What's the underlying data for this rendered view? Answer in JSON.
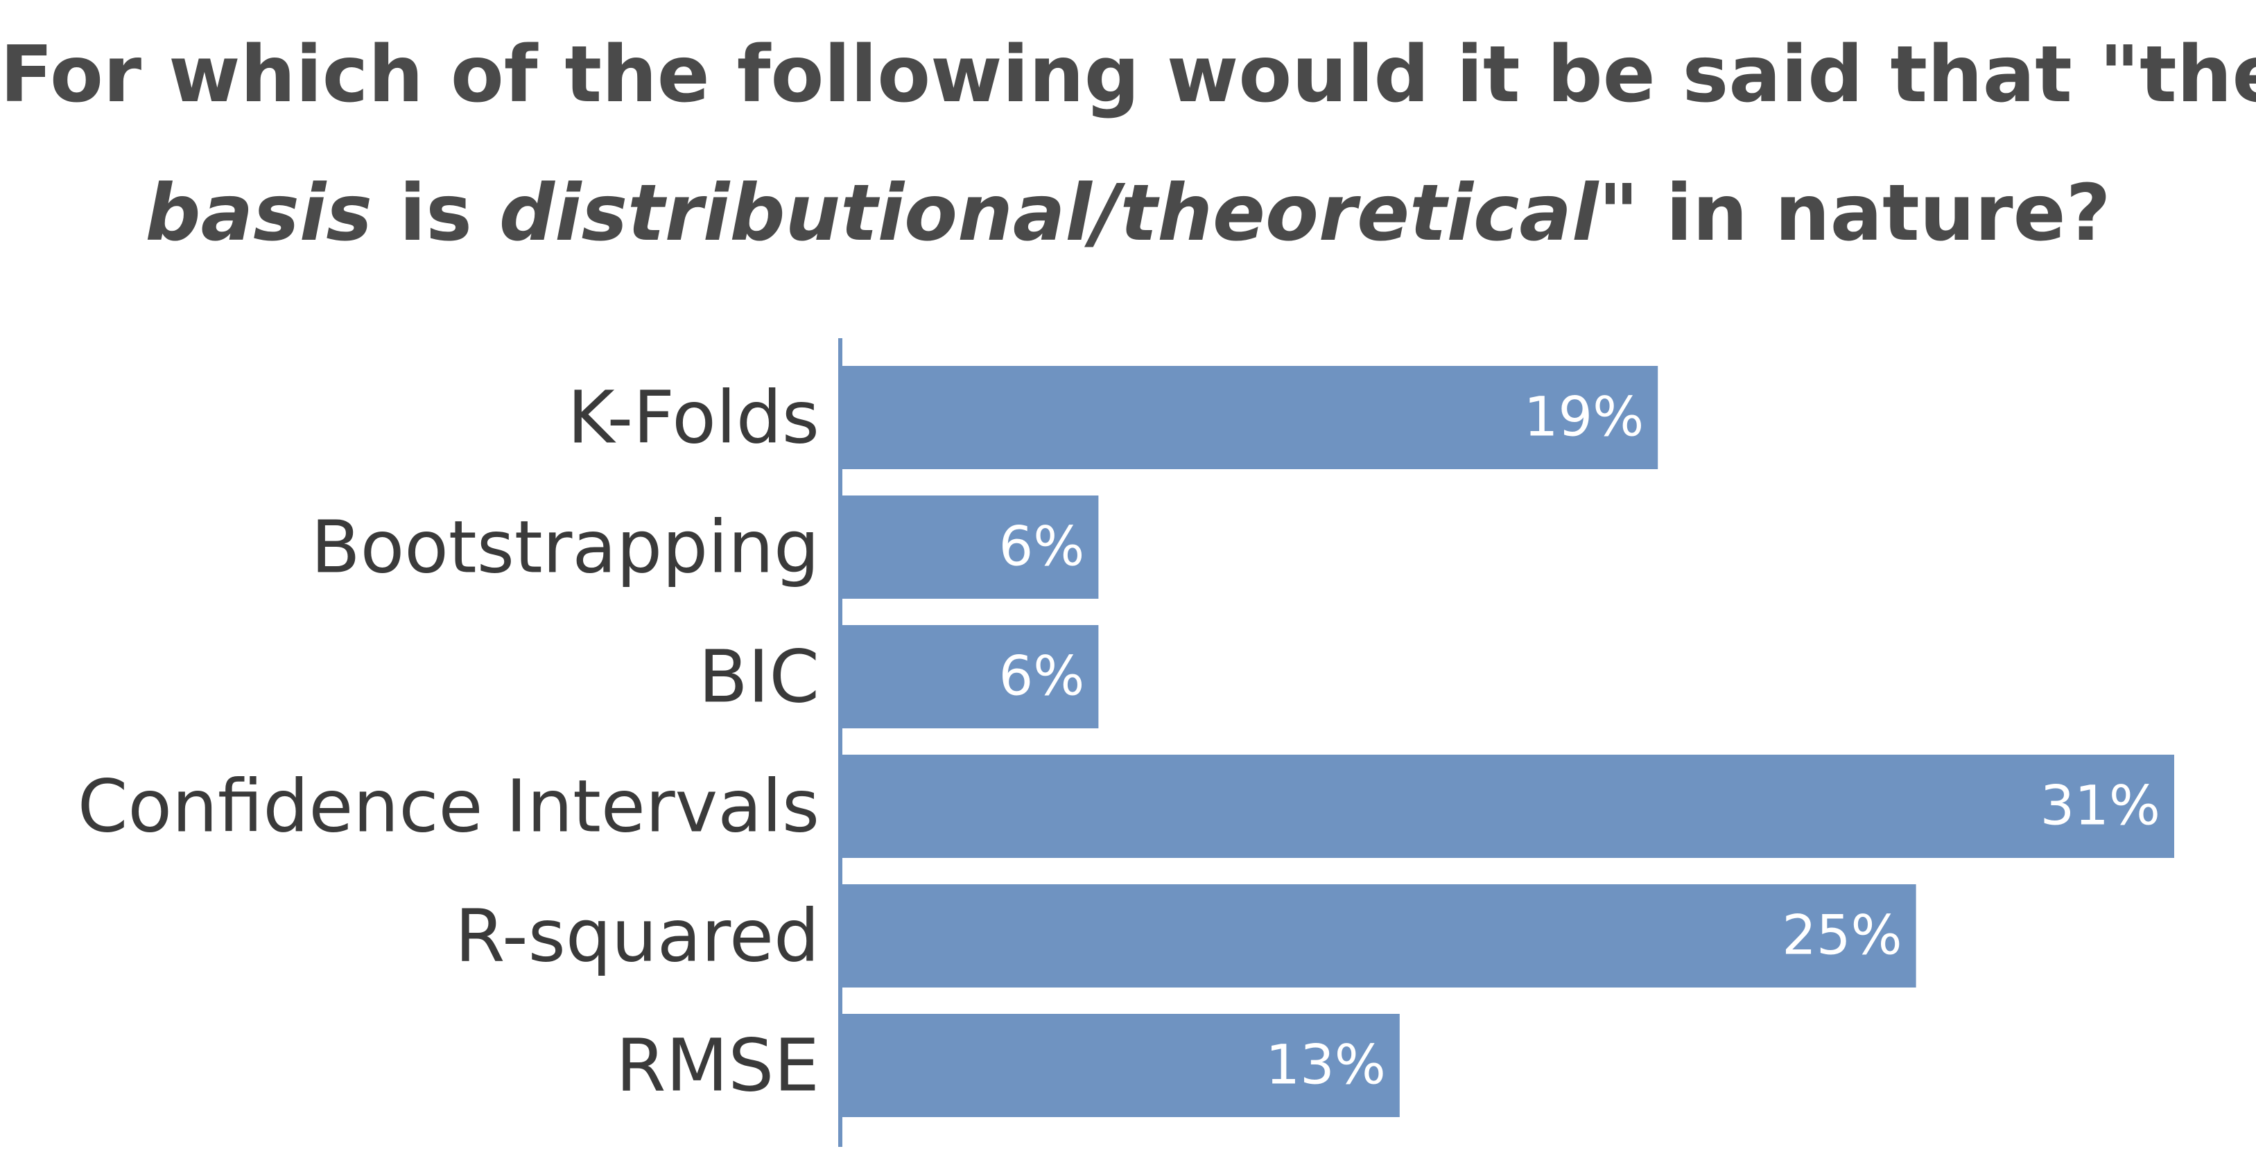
{
  "title": {
    "line1": "For which of the following would it be said that \"their",
    "line2_part1": "basis",
    "line2_part2": " is ",
    "line2_part3": "distributional/theoretical",
    "line2_part4": "\" in nature?"
  },
  "colors": {
    "bar": "#6f93c1",
    "axis": "#6f93c1",
    "title": "#4a4a4a",
    "label": "#3a3a3a",
    "value_label": "#ffffff"
  },
  "chart_data": {
    "type": "bar",
    "orientation": "horizontal",
    "title": "For which of the following would it be said that \"their basis is distributional/theoretical\" in nature?",
    "categories": [
      "K-Folds",
      "Bootstrapping",
      "BIC",
      "Confidence Intervals",
      "R-squared",
      "RMSE"
    ],
    "values": [
      19,
      6,
      6,
      31,
      25,
      13
    ],
    "value_labels": [
      "19%",
      "6%",
      "6%",
      "31%",
      "25%",
      "13%"
    ],
    "unit": "%",
    "xlim": [
      0,
      31
    ],
    "xlabel": "",
    "ylabel": "",
    "grid": false,
    "legend": "none"
  }
}
